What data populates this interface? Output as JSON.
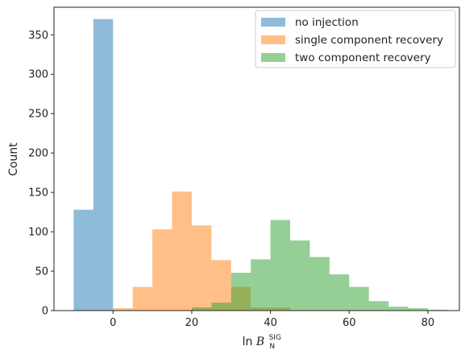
{
  "chart_data": {
    "type": "bar",
    "xlabel_parts": {
      "base": "ln ",
      "script": "B",
      "sup": "SIG",
      "sub": "N"
    },
    "ylabel": "Count",
    "xlim": [
      -15,
      88
    ],
    "ylim": [
      0,
      385
    ],
    "xticks": [
      0,
      20,
      40,
      60,
      80
    ],
    "yticks": [
      0,
      50,
      100,
      150,
      200,
      250,
      300,
      350
    ],
    "grid": false,
    "legend_position": "top-right",
    "series": [
      {
        "name": "no injection",
        "color": "#1f77b4",
        "opacity": 0.5,
        "bins": [
          {
            "x0": -10,
            "x1": -5,
            "value": 128
          },
          {
            "x0": -5,
            "x1": 0,
            "value": 370
          }
        ]
      },
      {
        "name": "single component recovery",
        "color": "#ff7f0e",
        "opacity": 0.5,
        "bins": [
          {
            "x0": 0,
            "x1": 5,
            "value": 3
          },
          {
            "x0": 5,
            "x1": 10,
            "value": 30
          },
          {
            "x0": 10,
            "x1": 15,
            "value": 103
          },
          {
            "x0": 15,
            "x1": 20,
            "value": 151
          },
          {
            "x0": 20,
            "x1": 25,
            "value": 108
          },
          {
            "x0": 25,
            "x1": 30,
            "value": 64
          },
          {
            "x0": 30,
            "x1": 35,
            "value": 30
          },
          {
            "x0": 35,
            "x1": 40,
            "value": 4
          },
          {
            "x0": 40,
            "x1": 45,
            "value": 4
          }
        ]
      },
      {
        "name": "two component recovery",
        "color": "#2ca02c",
        "opacity": 0.5,
        "bins": [
          {
            "x0": 20,
            "x1": 25,
            "value": 4
          },
          {
            "x0": 25,
            "x1": 30,
            "value": 10
          },
          {
            "x0": 30,
            "x1": 35,
            "value": 48
          },
          {
            "x0": 35,
            "x1": 40,
            "value": 65
          },
          {
            "x0": 40,
            "x1": 45,
            "value": 115
          },
          {
            "x0": 45,
            "x1": 50,
            "value": 89
          },
          {
            "x0": 50,
            "x1": 55,
            "value": 68
          },
          {
            "x0": 55,
            "x1": 60,
            "value": 46
          },
          {
            "x0": 60,
            "x1": 65,
            "value": 30
          },
          {
            "x0": 65,
            "x1": 70,
            "value": 12
          },
          {
            "x0": 70,
            "x1": 75,
            "value": 5
          },
          {
            "x0": 75,
            "x1": 80,
            "value": 3
          },
          {
            "x0": 80,
            "x1": 85,
            "value": 1
          }
        ]
      }
    ]
  }
}
